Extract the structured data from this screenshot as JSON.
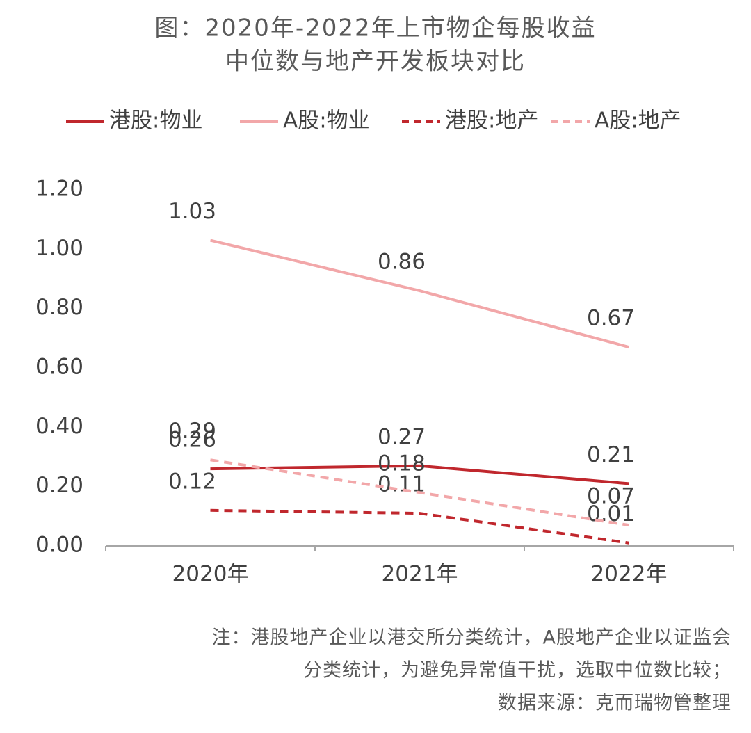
{
  "chart_data": {
    "type": "line",
    "title": "图：2020年-2022年上市物企每股收益",
    "subtitle": "中位数与地产开发板块对比",
    "categories": [
      "2020年",
      "2021年",
      "2022年"
    ],
    "series": [
      {
        "name": "港股:物业",
        "color": "#c0272d",
        "dash": false,
        "values": [
          0.26,
          0.27,
          0.21
        ]
      },
      {
        "name": "A股:物业",
        "color": "#f2a7a9",
        "dash": false,
        "values": [
          1.03,
          0.86,
          0.67
        ]
      },
      {
        "name": "港股:地产",
        "color": "#c0272d",
        "dash": true,
        "values": [
          0.12,
          0.11,
          0.01
        ]
      },
      {
        "name": "A股:地产",
        "color": "#f2a7a9",
        "dash": true,
        "values": [
          0.29,
          0.18,
          0.07
        ]
      }
    ],
    "ylim": [
      0,
      1.2
    ],
    "yticks": [
      {
        "value": 0,
        "label": "0.00"
      },
      {
        "value": 0.2,
        "label": "0.20"
      },
      {
        "value": 0.4,
        "label": "0.40"
      },
      {
        "value": 0.6,
        "label": "0.60"
      },
      {
        "value": 0.8,
        "label": "0.80"
      },
      {
        "value": 1.0,
        "label": "1.00"
      },
      {
        "value": 1.2,
        "label": "1.20"
      }
    ],
    "grid": false,
    "notes": [
      "注：港股地产企业以港交所分类统计，A股地产企业以证监会",
      "分类统计，为避免异常值干扰，选取中位数比较；",
      "数据来源：克而瑞物管整理"
    ]
  }
}
